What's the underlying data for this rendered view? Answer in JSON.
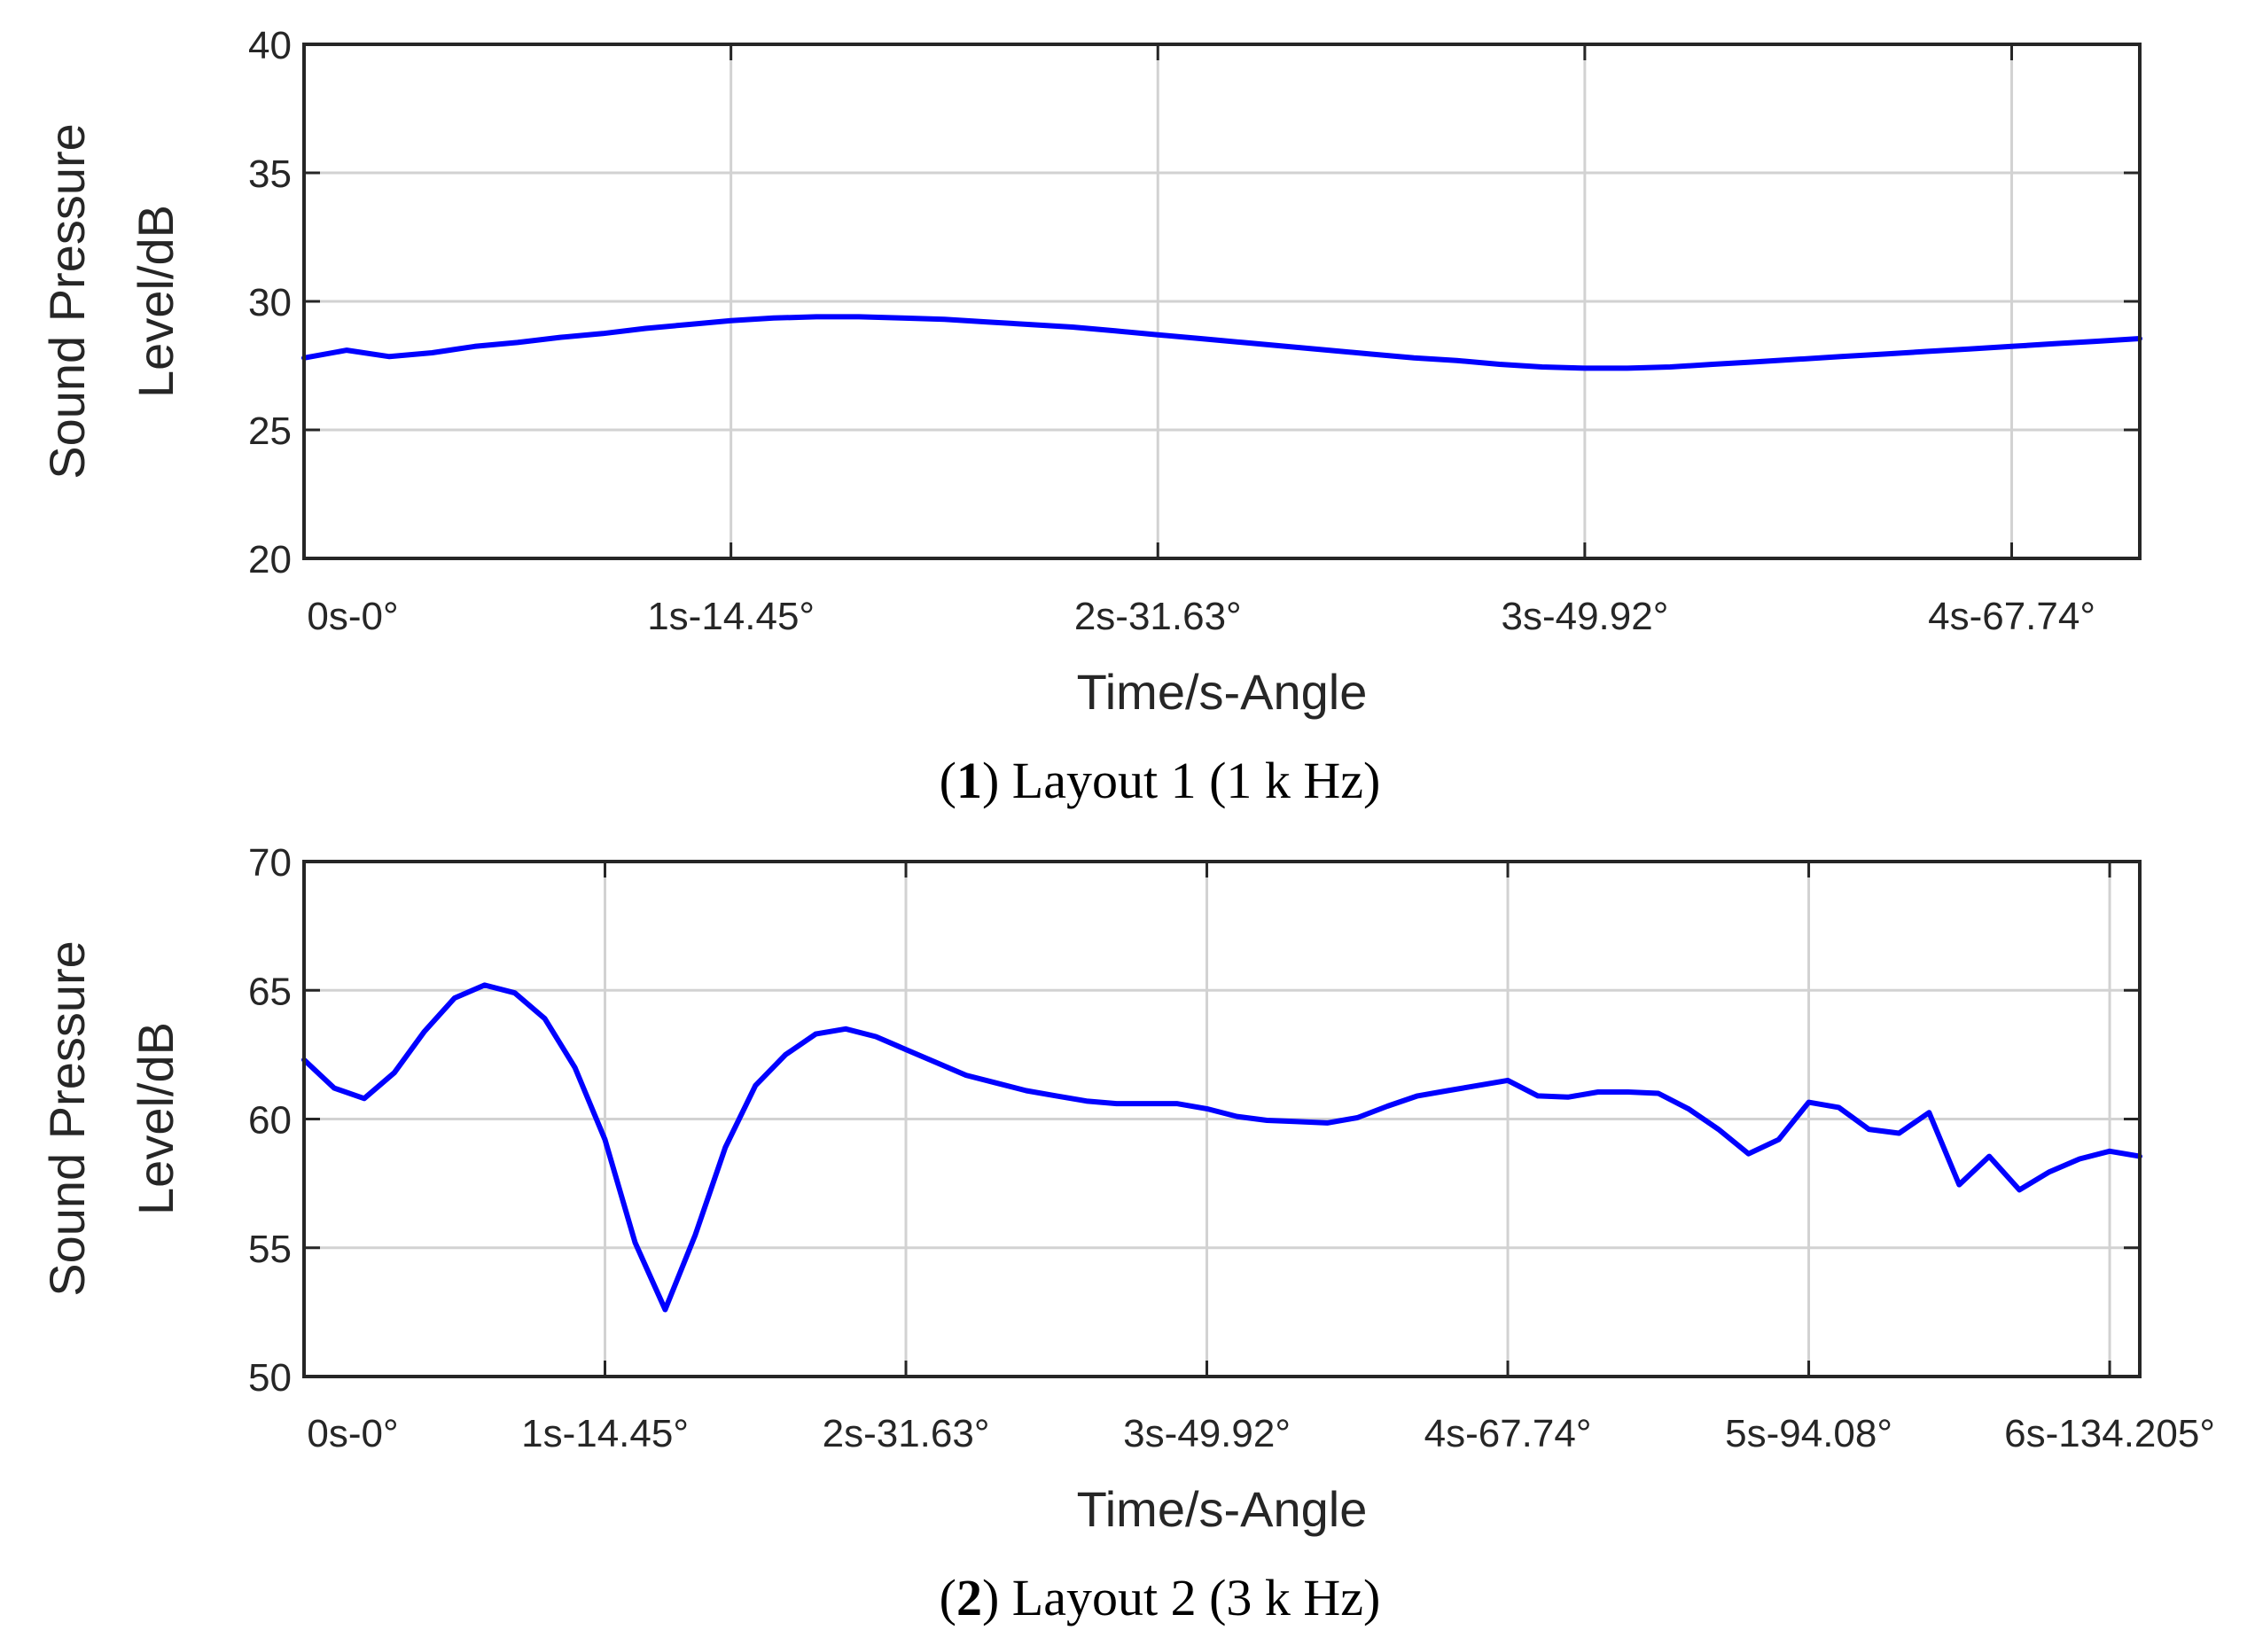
{
  "chart_data": [
    {
      "type": "line",
      "caption": {
        "open": "(",
        "number": "1",
        "rest": ") Layout 1 (1 k Hz)"
      },
      "xlabel": "Time/s-Angle",
      "ylabel": [
        "Sound Pressure",
        "Level/dB"
      ],
      "xlim": [
        0,
        4.3
      ],
      "ylim": [
        20,
        40
      ],
      "x_ticks": [
        0,
        1,
        2,
        3,
        4
      ],
      "x_tick_labels": [
        "0s-0°",
        "1s-14.45°",
        "2s-31.63°",
        "3s-49.92°",
        "4s-67.74°"
      ],
      "y_ticks": [
        20,
        25,
        30,
        35,
        40
      ],
      "grid": true,
      "series": [
        {
          "name": "Sound Pressure Level",
          "color": "#0000ff",
          "x": [
            0,
            0.1,
            0.2,
            0.3,
            0.4,
            0.5,
            0.6,
            0.7,
            0.8,
            0.9,
            1.0,
            1.1,
            1.2,
            1.3,
            1.4,
            1.5,
            1.6,
            1.7,
            1.8,
            1.9,
            2.0,
            2.1,
            2.2,
            2.3,
            2.4,
            2.5,
            2.6,
            2.7,
            2.8,
            2.9,
            3.0,
            3.1,
            3.2,
            3.3,
            3.4,
            3.5,
            3.6,
            3.7,
            3.8,
            3.9,
            4.0,
            4.1,
            4.2,
            4.3
          ],
          "y": [
            27.8,
            28.1,
            27.85,
            28.0,
            28.25,
            28.4,
            28.6,
            28.75,
            28.95,
            29.1,
            29.25,
            29.35,
            29.4,
            29.4,
            29.35,
            29.3,
            29.2,
            29.1,
            29.0,
            28.85,
            28.7,
            28.55,
            28.4,
            28.25,
            28.1,
            27.95,
            27.8,
            27.7,
            27.55,
            27.45,
            27.4,
            27.4,
            27.45,
            27.55,
            27.65,
            27.75,
            27.85,
            27.95,
            28.05,
            28.15,
            28.25,
            28.35,
            28.45,
            28.55
          ]
        }
      ]
    },
    {
      "type": "line",
      "caption": {
        "open": "(",
        "number": "2",
        "rest": ") Layout 2 (3 k Hz)"
      },
      "xlabel": "Time/s-Angle",
      "ylabel": [
        "Sound Pressure",
        "Level/dB"
      ],
      "xlim": [
        0,
        6.1
      ],
      "ylim": [
        50,
        70
      ],
      "x_ticks": [
        0,
        1,
        2,
        3,
        4,
        5,
        6
      ],
      "x_tick_labels": [
        "0s-0°",
        "1s-14.45°",
        "2s-31.63°",
        "3s-49.92°",
        "4s-67.74°",
        "5s-94.08°",
        "6s-134.205°"
      ],
      "y_ticks": [
        50,
        55,
        60,
        65,
        70
      ],
      "grid": true,
      "series": [
        {
          "name": "Sound Pressure Level",
          "color": "#0000ff",
          "x": [
            0,
            0.1,
            0.2,
            0.3,
            0.4,
            0.5,
            0.6,
            0.7,
            0.8,
            0.9,
            1.0,
            1.1,
            1.2,
            1.3,
            1.4,
            1.5,
            1.6,
            1.7,
            1.8,
            1.9,
            2.0,
            2.1,
            2.2,
            2.3,
            2.4,
            2.5,
            2.6,
            2.7,
            2.8,
            2.9,
            3.0,
            3.1,
            3.2,
            3.3,
            3.4,
            3.5,
            3.6,
            3.7,
            3.8,
            3.9,
            4.0,
            4.1,
            4.2,
            4.3,
            4.4,
            4.5,
            4.6,
            4.7,
            4.8,
            4.9,
            5.0,
            5.1,
            5.2,
            5.3,
            5.4,
            5.5,
            5.6,
            5.7,
            5.8,
            5.9,
            6.0,
            6.1
          ],
          "y": [
            62.3,
            61.2,
            60.8,
            61.8,
            63.4,
            64.7,
            65.2,
            64.9,
            63.9,
            62.0,
            59.2,
            55.2,
            52.6,
            55.5,
            58.9,
            61.3,
            62.5,
            63.3,
            63.5,
            63.2,
            62.7,
            62.2,
            61.7,
            61.4,
            61.1,
            60.9,
            60.7,
            60.6,
            60.6,
            60.6,
            60.4,
            60.1,
            59.95,
            59.9,
            59.85,
            60.05,
            60.5,
            60.9,
            61.1,
            61.3,
            61.5,
            60.9,
            60.85,
            61.05,
            61.05,
            61.0,
            60.4,
            59.6,
            58.65,
            59.2,
            60.65,
            60.45,
            59.6,
            59.45,
            60.25,
            57.45,
            58.55,
            57.25,
            57.95,
            58.45,
            58.75,
            58.55
          ]
        }
      ]
    }
  ]
}
